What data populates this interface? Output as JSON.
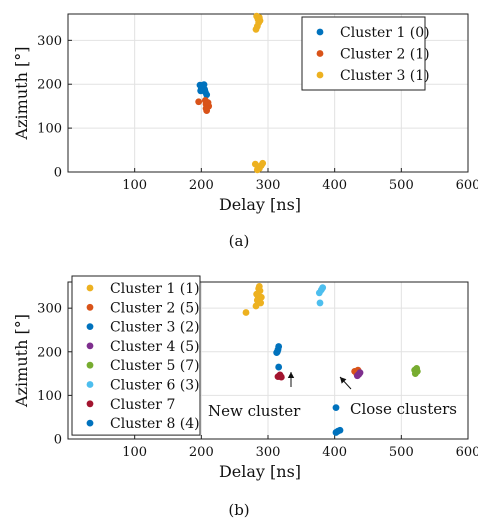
{
  "chart_data": [
    {
      "type": "scatter",
      "caption": "(a)",
      "xlabel": "Delay [ns]",
      "ylabel": "Azimuth [°]",
      "xlim": [
        0,
        600
      ],
      "ylim": [
        0,
        360
      ],
      "xticks": [
        100,
        200,
        300,
        400,
        500,
        600
      ],
      "yticks": [
        0,
        100,
        200,
        300
      ],
      "grid": true,
      "legend_position": "top-right",
      "series": [
        {
          "name": "Cluster 1 (0)",
          "color": "#0072BD",
          "points": [
            [
              198,
              198
            ],
            [
              200,
              195
            ],
            [
              202,
              197
            ],
            [
              204,
              199
            ],
            [
              200,
              190
            ],
            [
              199,
              185
            ],
            [
              203,
              192
            ],
            [
              206,
              182
            ],
            [
              205,
              188
            ],
            [
              201,
              196
            ],
            [
              208,
              176
            ]
          ]
        },
        {
          "name": "Cluster 2 (1)",
          "color": "#D95319",
          "points": [
            [
              196,
              160
            ],
            [
              206,
              163
            ],
            [
              207,
              155
            ],
            [
              209,
              148
            ],
            [
              208,
              140
            ],
            [
              211,
              150
            ],
            [
              210,
              158
            ],
            [
              207,
              145
            ]
          ]
        },
        {
          "name": "Cluster 3 (1)",
          "color": "#EDB120",
          "points": [
            [
              283,
              355
            ],
            [
              285,
              348
            ],
            [
              286,
              340
            ],
            [
              288,
              345
            ],
            [
              284,
              332
            ],
            [
              282,
              325
            ],
            [
              287,
              352
            ],
            [
              281,
              18
            ],
            [
              285,
              12
            ],
            [
              287,
              8
            ],
            [
              290,
              15
            ],
            [
              292,
              20
            ],
            [
              284,
              5
            ]
          ]
        }
      ]
    },
    {
      "type": "scatter",
      "caption": "(b)",
      "xlabel": "Delay [ns]",
      "ylabel": "Azimuth [°]",
      "xlim": [
        0,
        600
      ],
      "ylim": [
        0,
        360
      ],
      "xticks": [
        100,
        200,
        300,
        400,
        500,
        600
      ],
      "yticks": [
        0,
        100,
        200,
        300
      ],
      "grid": true,
      "legend_position": "top-left",
      "series": [
        {
          "name": "Cluster 1 (1)",
          "color": "#EDB120",
          "points": [
            [
              267,
              290
            ],
            [
              282,
              305
            ],
            [
              284,
              318
            ],
            [
              286,
              328
            ],
            [
              288,
              340
            ],
            [
              287,
              350
            ],
            [
              285,
              322
            ],
            [
              289,
              312
            ],
            [
              283,
              332
            ],
            [
              290,
              325
            ],
            [
              286,
              345
            ]
          ]
        },
        {
          "name": "Cluster 2 (5)",
          "color": "#D95319",
          "points": [
            [
              430,
              155
            ],
            [
              433,
              150
            ],
            [
              435,
              158
            ]
          ]
        },
        {
          "name": "Cluster 3 (2)",
          "color": "#0072BD",
          "points": [
            [
              313,
              198
            ],
            [
              315,
              205
            ],
            [
              316,
              212
            ],
            [
              314,
              200
            ],
            [
              316,
              165
            ]
          ]
        },
        {
          "name": "Cluster 4 (5)",
          "color": "#7E2F8E",
          "points": [
            [
              436,
              148
            ],
            [
              438,
              152
            ],
            [
              434,
              145
            ]
          ]
        },
        {
          "name": "Cluster 5 (7)",
          "color": "#77AC30",
          "points": [
            [
              520,
              158
            ],
            [
              522,
              160
            ],
            [
              524,
              155
            ],
            [
              521,
              150
            ],
            [
              523,
              162
            ]
          ]
        },
        {
          "name": "Cluster 6 (3)",
          "color": "#4DBEEE",
          "points": [
            [
              377,
              335
            ],
            [
              380,
              342
            ],
            [
              382,
              347
            ],
            [
              378,
              312
            ]
          ]
        },
        {
          "name": "Cluster 7",
          "color": "#A2142F",
          "points": [
            [
              315,
              143
            ],
            [
              318,
              147
            ],
            [
              320,
              142
            ],
            [
              317,
              145
            ]
          ]
        },
        {
          "name": "Cluster 8 (4)",
          "color": "#0072BD",
          "points": [
            [
              402,
              72
            ],
            [
              402,
              15
            ],
            [
              405,
              18
            ],
            [
              408,
              20
            ]
          ]
        }
      ],
      "annotations": [
        {
          "text": "New cluster",
          "x": 317,
          "y": 136
        },
        {
          "text": "Close clusters",
          "x": 437,
          "y": 140
        }
      ]
    }
  ]
}
